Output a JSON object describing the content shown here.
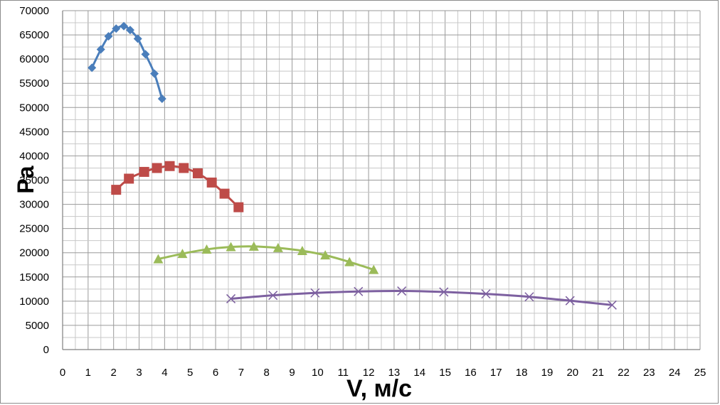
{
  "chart_data": {
    "type": "line",
    "xlabel": "V, м/с",
    "ylabel": "Pa",
    "xlim": [
      0,
      25
    ],
    "ylim": [
      0,
      70000
    ],
    "x_ticks": [
      "0",
      "1",
      "2",
      "3",
      "4",
      "5",
      "6",
      "7",
      "8",
      "9",
      "10",
      "11",
      "12",
      "13",
      "14",
      "15",
      "16",
      "17",
      "18",
      "19",
      "20",
      "21",
      "22",
      "23",
      "24",
      "25"
    ],
    "y_ticks": [
      "0",
      "5000",
      "10000",
      "15000",
      "20000",
      "25000",
      "30000",
      "35000",
      "40000",
      "45000",
      "50000",
      "55000",
      "60000",
      "65000",
      "70000"
    ],
    "grid": true,
    "series": [
      {
        "color": "#4a7ebb",
        "marker": "diamond",
        "points": [
          [
            1.15,
            58200
          ],
          [
            1.5,
            62000
          ],
          [
            1.8,
            64700
          ],
          [
            2.1,
            66300
          ],
          [
            2.4,
            66800
          ],
          [
            2.65,
            66000
          ],
          [
            2.95,
            64200
          ],
          [
            3.25,
            61000
          ],
          [
            3.6,
            57000
          ],
          [
            3.9,
            51800
          ]
        ]
      },
      {
        "color": "#be4b48",
        "marker": "square",
        "points": [
          [
            2.1,
            33000
          ],
          [
            2.6,
            35300
          ],
          [
            3.2,
            36700
          ],
          [
            3.7,
            37500
          ],
          [
            4.2,
            37900
          ],
          [
            4.75,
            37500
          ],
          [
            5.3,
            36400
          ],
          [
            5.85,
            34500
          ],
          [
            6.35,
            32200
          ],
          [
            6.9,
            29400
          ]
        ]
      },
      {
        "color": "#9bbb59",
        "marker": "triangle",
        "points": [
          [
            3.75,
            18700
          ],
          [
            4.7,
            19800
          ],
          [
            5.65,
            20700
          ],
          [
            6.6,
            21200
          ],
          [
            7.5,
            21300
          ],
          [
            8.45,
            21000
          ],
          [
            9.4,
            20400
          ],
          [
            10.3,
            19500
          ],
          [
            11.25,
            18100
          ],
          [
            12.2,
            16500
          ]
        ]
      },
      {
        "color": "#7d60a0",
        "marker": "x",
        "points": [
          [
            6.6,
            10500
          ],
          [
            8.25,
            11200
          ],
          [
            9.9,
            11700
          ],
          [
            11.6,
            12000
          ],
          [
            13.3,
            12100
          ],
          [
            14.95,
            11900
          ],
          [
            16.6,
            11500
          ],
          [
            18.3,
            10900
          ],
          [
            19.9,
            10100
          ],
          [
            21.55,
            9200
          ]
        ]
      }
    ]
  }
}
